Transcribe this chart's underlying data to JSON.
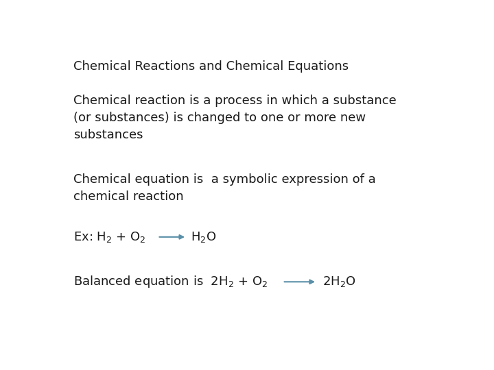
{
  "background_color": "#ffffff",
  "title": "Chemical Reactions and Chemical Equations",
  "title_fontsize": 13,
  "title_fontweight": "normal",
  "title_color": "#1a1a1a",
  "body1": "Chemical reaction is a process in which a substance\n(or substances) is changed to one or more new\nsubstances",
  "body2": "Chemical equation is  a symbolic expression of a\nchemical reaction",
  "body_fontsize": 13,
  "body_fontweight": "normal",
  "body_color": "#1a1a1a",
  "arrow_color": "#5a8fa8",
  "eq_fontsize": 13,
  "eq_fontweight": "normal",
  "eq_color": "#1a1a1a"
}
